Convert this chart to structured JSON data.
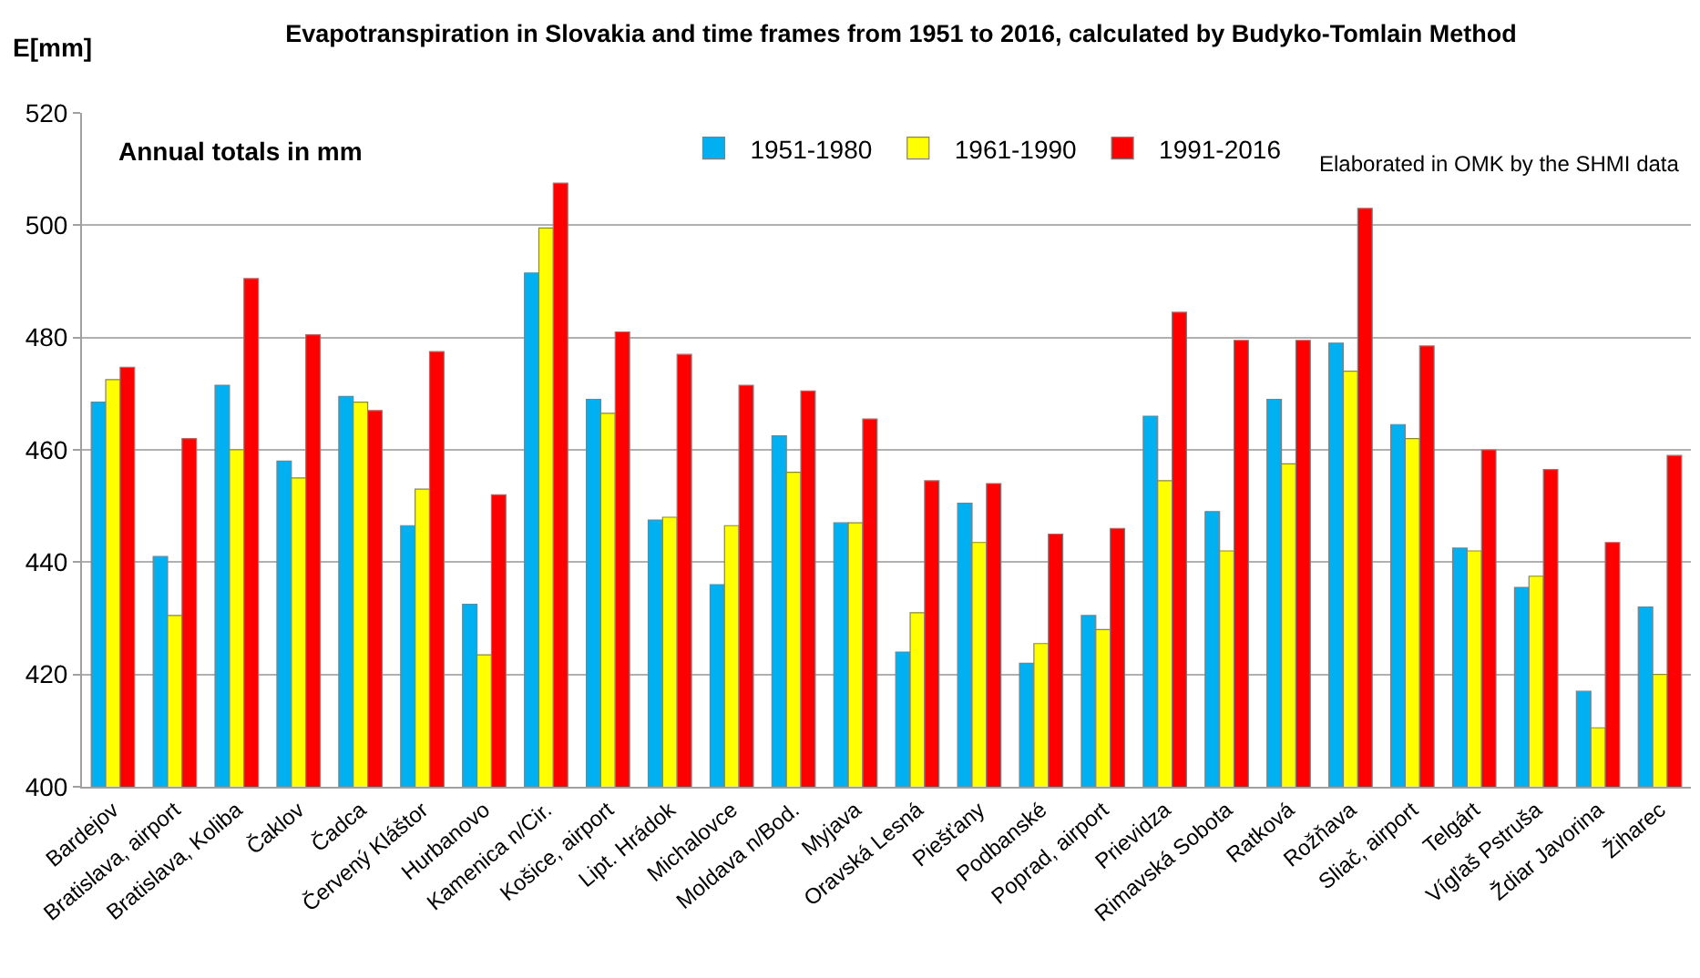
{
  "chart_data": {
    "type": "bar",
    "title": "Evapotranspiration in Slovakia and time frames from 1951 to 2016, calculated by Budyko-Tomlain Method",
    "ylabel": "E[mm]",
    "categories": [
      "Bardejov",
      "Bratislava, airport",
      "Bratislava, Koliba",
      "Čaklov",
      "Čadca",
      "Červený Kláštor",
      "Hurbanovo",
      "Kamenica n/Cir.",
      "Košice, airport",
      "Lipt. Hrádok",
      "Michalovce",
      "Moldava n/Bod.",
      "Myjava",
      "Oravská Lesná",
      "Piešťany",
      "Podbanské",
      "Poprad, airport",
      "Prievidza",
      "Rimavská Sobota",
      "Ratková",
      "Rožňava",
      "Sliač, airport",
      "Telgárt",
      "Vígľaš Pstruša",
      "Ždiar Javorina",
      "Žiharec"
    ],
    "series": [
      {
        "name": "1951-1980",
        "color": "#00b0f0",
        "values": [
          468.5,
          441,
          471.5,
          458,
          469.5,
          446.5,
          432.5,
          491.5,
          469,
          447.5,
          436,
          462.5,
          447,
          424,
          450.5,
          422,
          430.5,
          466,
          449,
          469,
          479,
          464.5,
          442.5,
          435.5,
          417,
          432
        ]
      },
      {
        "name": "1961-1990",
        "color": "#ffff00",
        "values": [
          472.5,
          430.5,
          460,
          455,
          468.5,
          453,
          423.5,
          499.5,
          466.5,
          448,
          446.5,
          456,
          447,
          431,
          443.5,
          425.5,
          428,
          454.5,
          442,
          457.5,
          474,
          462,
          442,
          437.5,
          410.5,
          420
        ]
      },
      {
        "name": "1991-2016",
        "color": "#ff0000",
        "values": [
          474.7,
          462,
          490.5,
          480.5,
          467,
          477.5,
          452,
          507.5,
          481,
          477,
          471.5,
          470.5,
          465.5,
          454.5,
          454,
          445,
          446,
          484.5,
          479.5,
          479.5,
          503,
          478.5,
          460,
          456.5,
          443.5,
          459
        ]
      }
    ],
    "ylim": [
      400,
      520
    ],
    "yticks": [
      400,
      420,
      440,
      460,
      480,
      500,
      520
    ],
    "grid": "y",
    "legend": "top",
    "annotations": [
      "Annual totals in mm",
      "Elaborated in OMK by the SHMI data"
    ]
  }
}
